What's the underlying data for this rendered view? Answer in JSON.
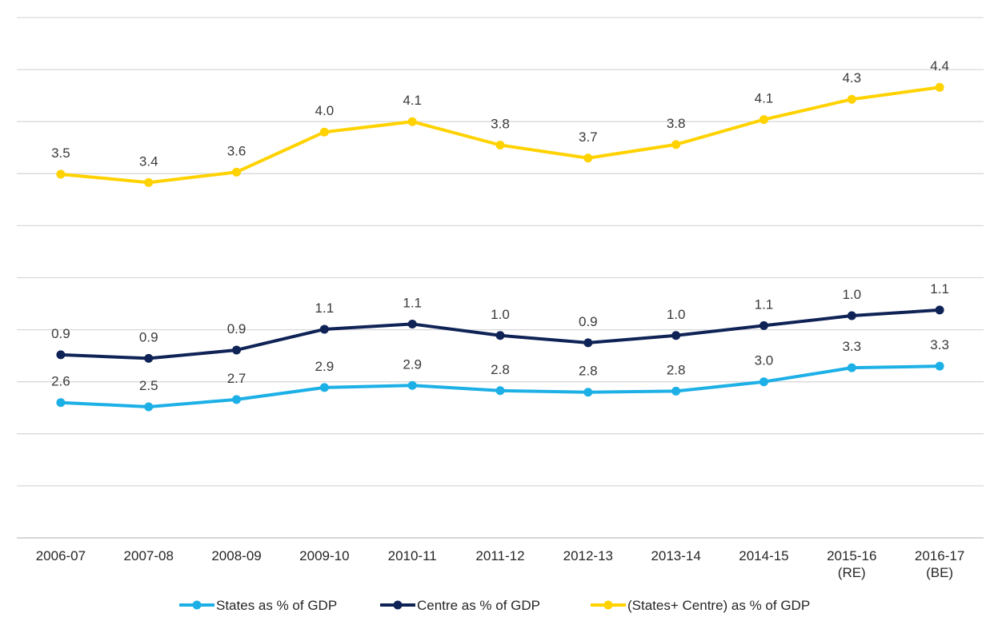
{
  "chart_data": {
    "type": "line",
    "categories": [
      [
        "2006-07"
      ],
      [
        "2007-08"
      ],
      [
        "2008-09"
      ],
      [
        "2009-10"
      ],
      [
        "2010-11"
      ],
      [
        "2011-12"
      ],
      [
        "2012-13"
      ],
      [
        "2013-14"
      ],
      [
        "2014-15"
      ],
      [
        "2015-16",
        "(RE)"
      ],
      [
        "2016-17",
        "(BE)"
      ]
    ],
    "series": [
      {
        "name": "States as % of GDP",
        "color": "#1cb0e6",
        "values": [
          2.6,
          2.5,
          2.7,
          2.9,
          2.9,
          2.8,
          2.8,
          2.8,
          3.0,
          3.3,
          3.3
        ],
        "plot_y": [
          2.6,
          2.52,
          2.66,
          2.89,
          2.93,
          2.83,
          2.8,
          2.82,
          3.0,
          3.27,
          3.3
        ]
      },
      {
        "name": "Centre as % of GDP",
        "color": "#0f2356",
        "values": [
          0.9,
          0.9,
          0.9,
          1.1,
          1.1,
          1.0,
          0.9,
          1.0,
          1.1,
          1.0,
          1.1
        ],
        "plot_y": [
          3.52,
          3.45,
          3.61,
          4.01,
          4.11,
          3.89,
          3.75,
          3.89,
          4.08,
          4.27,
          4.38
        ]
      },
      {
        "name": "(States+ Centre) as % of GDP",
        "color": "#ffd200",
        "values": [
          3.5,
          3.4,
          3.6,
          4.0,
          4.1,
          3.8,
          3.7,
          3.8,
          4.1,
          4.3,
          4.4
        ],
        "plot_y": [
          6.99,
          6.83,
          7.03,
          7.8,
          8.0,
          7.55,
          7.3,
          7.56,
          8.04,
          8.43,
          8.66
        ]
      }
    ],
    "ylim": [
      0,
      10
    ],
    "grid": true,
    "legend": "bottom",
    "title": "",
    "xlabel": "",
    "ylabel": ""
  }
}
